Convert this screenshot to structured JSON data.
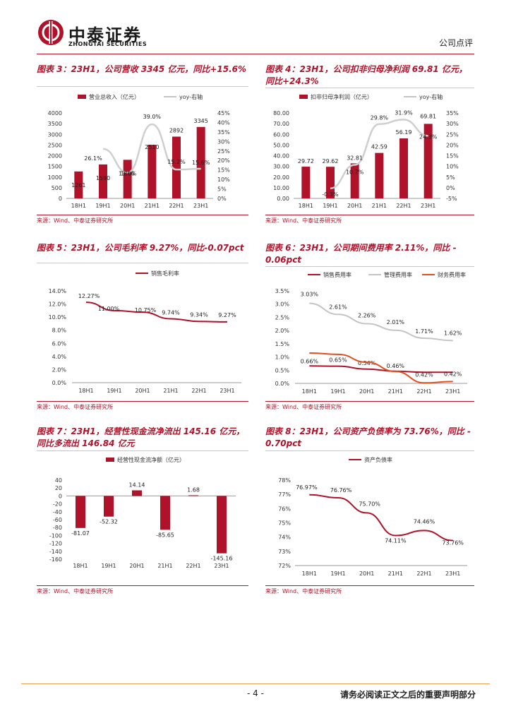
{
  "header": {
    "company_cn": "中泰证券",
    "company_en": "ZHONGTAI SECURITIES",
    "report_type": "公司点评"
  },
  "figures": {
    "f3": {
      "title": "图表 3：23H1，公司营收 3345 亿元，同比+15.6%",
      "source": "来源：Wind、中泰证券研究所"
    },
    "f4": {
      "title_line1": "图表 4：23H1，公司扣非归母净利润 69.81 亿元，",
      "title_line2": "同比+24.3%",
      "source": "来源：Wind、中泰证券研究所"
    },
    "f5": {
      "title": "图表 5：23H1，公司毛利率 9.27%，同比-0.07pct",
      "source": "来源：Wind、中泰证券研究所"
    },
    "f6": {
      "title_line1": "图表 6：23H1，公司期间费用率 2.11%，同比 -",
      "title_line2": "0.06pct",
      "source": "来源：Wind、中泰证券研究所"
    },
    "f7": {
      "title_line1": "图表 7：23H1，经营性现金流净流出 145.16 亿元，",
      "title_line2": "同比多流出 146.84 亿元",
      "source": "来源：Wind、中泰证券研究所"
    },
    "f8": {
      "title_line1": "图表 8：23H1，公司资产负债率为 73.76%，同比 -",
      "title_line2": "0.70pct",
      "source": "来源：Wind、中泰证券研究所"
    }
  },
  "chart_data": [
    {
      "id": "f3",
      "type": "bar+line",
      "categories": [
        "18H1",
        "19H1",
        "20H1",
        "21H1",
        "22H1",
        "23H1"
      ],
      "series": [
        {
          "name": "营业总收入（亿元）",
          "kind": "bar",
          "axis": "left",
          "values": [
            1261,
            1590,
            1806,
            2510,
            2892,
            3345
          ],
          "labels": [
            "1261",
            "1590",
            "1806",
            "2510",
            "2892",
            "3345"
          ]
        },
        {
          "name": "yoy-右轴",
          "kind": "line",
          "axis": "right",
          "values": [
            null,
            26.1,
            13.6,
            39.0,
            15.2,
            15.6
          ],
          "labels": [
            "",
            "26.1%",
            "13.6%",
            "39.0%",
            "15.2%",
            "15.6%"
          ]
        }
      ],
      "left_axis": {
        "min": 0,
        "max": 4000,
        "ticks": [
          "0",
          "500",
          "1000",
          "1500",
          "2000",
          "2500",
          "3000",
          "3500",
          "4000"
        ]
      },
      "right_axis": {
        "min": 0,
        "max": 45,
        "ticks": [
          "0%",
          "5%",
          "10%",
          "15%",
          "20%",
          "25%",
          "30%",
          "35%",
          "40%",
          "45%"
        ]
      }
    },
    {
      "id": "f4",
      "type": "bar+line",
      "categories": [
        "18H1",
        "19H1",
        "20H1",
        "21H1",
        "22H1",
        "23H1"
      ],
      "series": [
        {
          "name": "扣非归母净利润（亿元）",
          "kind": "bar",
          "axis": "left",
          "values": [
            29.72,
            29.62,
            32.81,
            42.59,
            56.19,
            69.81
          ],
          "labels": [
            "29.72",
            "29.62",
            "32.81",
            "42.59",
            "56.19",
            "69.81"
          ]
        },
        {
          "name": "yoy-右轴",
          "kind": "line",
          "axis": "right",
          "values": [
            null,
            -0.3,
            10.7,
            29.8,
            31.9,
            24.3
          ],
          "labels": [
            "",
            "-0.3%",
            "10.7%",
            "29.8%",
            "31.9%",
            "24.3%"
          ]
        }
      ],
      "left_axis": {
        "min": 0,
        "max": 80,
        "ticks": [
          "0.00",
          "10.00",
          "20.00",
          "30.00",
          "40.00",
          "50.00",
          "60.00",
          "70.00",
          "80.00"
        ]
      },
      "right_axis": {
        "min": -5,
        "max": 35,
        "ticks": [
          "-5%",
          "0%",
          "5%",
          "10%",
          "15%",
          "20%",
          "25%",
          "30%",
          "35%"
        ]
      }
    },
    {
      "id": "f5",
      "type": "line",
      "categories": [
        "18H1",
        "19H1",
        "20H1",
        "21H1",
        "22H1",
        "23H1"
      ],
      "series": [
        {
          "name": "销售毛利率",
          "values": [
            12.27,
            11.0,
            10.75,
            9.74,
            9.34,
            9.27
          ],
          "labels": [
            "12.27%",
            "11.00%",
            "10.75%",
            "9.74%",
            "9.34%",
            "9.27%"
          ],
          "color": "#b0122a"
        }
      ],
      "axis": {
        "min": 0,
        "max": 14,
        "ticks": [
          "0.0%",
          "2.0%",
          "4.0%",
          "6.0%",
          "8.0%",
          "10.0%",
          "12.0%",
          "14.0%"
        ]
      }
    },
    {
      "id": "f6",
      "type": "line",
      "categories": [
        "18H1",
        "19H1",
        "20H1",
        "21H1",
        "22H1",
        "23H1"
      ],
      "series": [
        {
          "name": "销售费用率",
          "values": [
            0.66,
            0.65,
            0.54,
            0.46,
            0.42,
            0.42
          ],
          "labels": [
            "0.66%",
            "0.65%",
            "0.54%",
            "0.46%",
            "0.42%",
            "0.42%"
          ],
          "color": "#b0122a"
        },
        {
          "name": "管理费用率",
          "values": [
            3.03,
            2.61,
            2.26,
            2.01,
            1.71,
            1.62
          ],
          "labels": [
            "3.03%",
            "2.61%",
            "2.26%",
            "2.01%",
            "1.71%",
            "1.62%"
          ],
          "color": "#c4c4c4"
        },
        {
          "name": "财务费用率",
          "values": [
            1.15,
            1.1,
            0.8,
            0.45,
            0.02,
            0.07
          ],
          "labels": [],
          "color": "#e0501e"
        }
      ],
      "axis": {
        "min": 0,
        "max": 3.5,
        "ticks": [
          "0.0%",
          "0.5%",
          "1.0%",
          "1.5%",
          "2.0%",
          "2.5%",
          "3.0%",
          "3.5%"
        ]
      }
    },
    {
      "id": "f7",
      "type": "bar",
      "categories": [
        "18H1",
        "19H1",
        "20H1",
        "21H1",
        "22H1",
        "23H1"
      ],
      "series": [
        {
          "name": "经营性现金流净额（亿元）",
          "values": [
            -81.07,
            -52.32,
            14.14,
            -85.65,
            1.68,
            -145.16
          ],
          "labels": [
            "-81.07",
            "-52.32",
            "14.14",
            "-85.65",
            "1.68",
            "-145.16"
          ]
        }
      ],
      "axis": {
        "min": -160,
        "max": 40,
        "ticks": [
          "-160",
          "-140",
          "-120",
          "-100",
          "-80",
          "-60",
          "-40",
          "-20",
          "0",
          "20",
          "40"
        ]
      }
    },
    {
      "id": "f8",
      "type": "line",
      "categories": [
        "18H1",
        "19H1",
        "20H1",
        "21H1",
        "22H1",
        "23H1"
      ],
      "series": [
        {
          "name": "资产负债率",
          "values": [
            76.97,
            76.76,
            75.7,
            74.11,
            74.46,
            73.76
          ],
          "labels": [
            "76.97%",
            "76.76%",
            "75.70%",
            "74.11%",
            "74.46%",
            "73.76%"
          ],
          "color": "#b0122a"
        }
      ],
      "axis": {
        "min": 72,
        "max": 78,
        "ticks": [
          "72%",
          "73%",
          "74%",
          "75%",
          "76%",
          "77%",
          "78%"
        ]
      }
    }
  ],
  "footer": {
    "page": "- 4 -",
    "disclaimer": "请务必阅读正文之后的重要声明部分"
  }
}
